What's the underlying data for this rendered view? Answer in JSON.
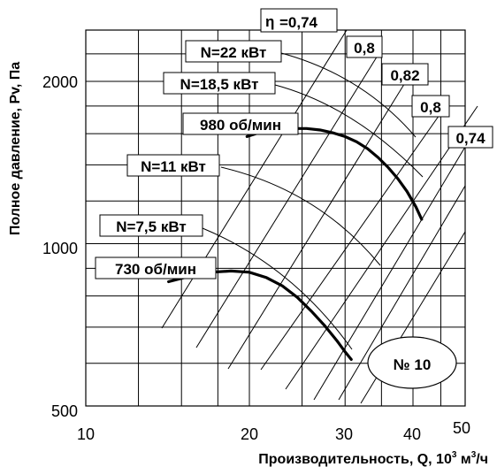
{
  "chart_data": {
    "type": "line",
    "xlabel": "Производительность, Q, 10³ м³/ч",
    "ylabel": "Полное давление, Pv, Па",
    "x_scale": "log",
    "y_scale": "log",
    "xlim": [
      10,
      50
    ],
    "ylim": [
      500,
      2600
    ],
    "x_ticks": [
      "10",
      "20",
      "30",
      "40",
      "50"
    ],
    "y_ticks": [
      "500",
      "1000",
      "2000"
    ],
    "grid": true,
    "model_label": "№ 10",
    "series": [
      {
        "name": "980 об/мин",
        "x": [
          19.8,
          21,
          22.5,
          24,
          25.5,
          27,
          28.5,
          30,
          31.5,
          33,
          34.5,
          36,
          37.5,
          39,
          40.5,
          41.5
        ],
        "y": [
          1580,
          1610,
          1630,
          1635,
          1635,
          1625,
          1605,
          1580,
          1545,
          1500,
          1445,
          1385,
          1320,
          1250,
          1170,
          1110
        ]
      },
      {
        "name": "730 об/мин",
        "x": [
          14.2,
          15.5,
          17,
          18.5,
          20,
          21.5,
          23,
          24.5,
          26,
          27.5,
          29,
          30,
          30.8
        ],
        "y": [
          850,
          870,
          885,
          890,
          885,
          865,
          835,
          795,
          750,
          705,
          660,
          630,
          610
        ]
      }
    ],
    "power_lines": [
      {
        "label": "N=22 кВт"
      },
      {
        "label": "N=18,5 кВт"
      },
      {
        "label": "N=11 кВт"
      },
      {
        "label": "N=7,5 кВт"
      }
    ],
    "efficiency_lines": [
      {
        "symbol": "η",
        "label": "=0,74"
      },
      {
        "label": "0,8"
      },
      {
        "label": "0,82"
      },
      {
        "label": "0,8"
      },
      {
        "label": "0,74"
      }
    ]
  }
}
